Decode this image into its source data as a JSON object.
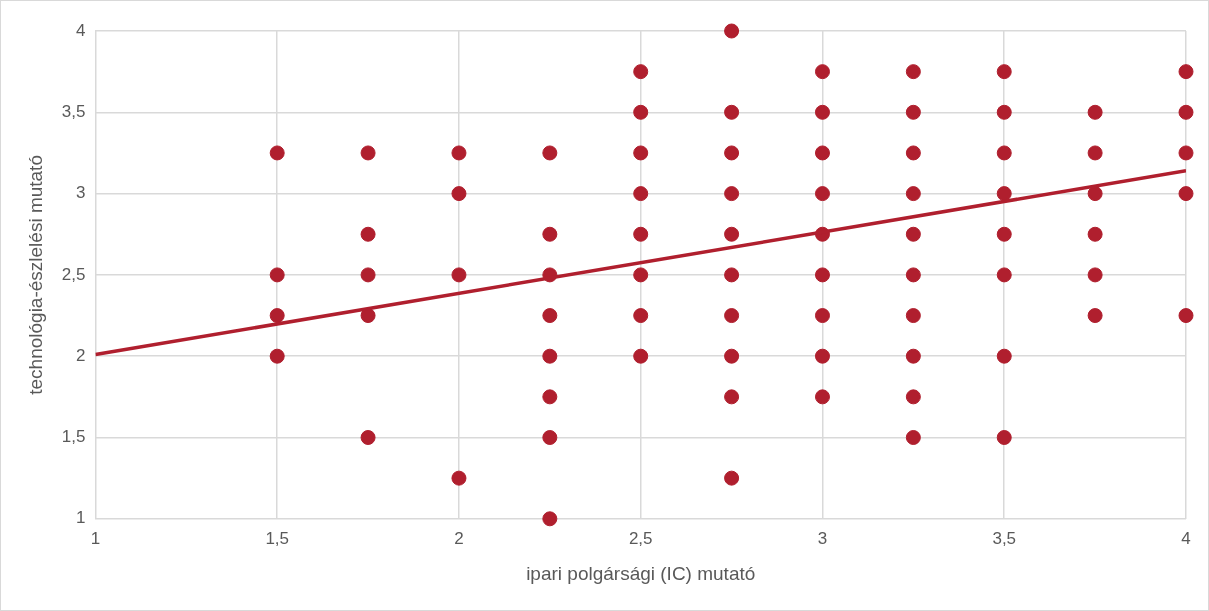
{
  "chart_data": {
    "type": "scatter",
    "xlabel": "ipari polgársági (IC) mutató",
    "ylabel": "technológia-észlelési mutató",
    "grid": true,
    "legend": false,
    "xlim": [
      1,
      4
    ],
    "xticks": [
      1,
      {
        "value": 1.5,
        "label": "1,5"
      },
      2,
      {
        "value": 2.5,
        "label": "2,5"
      },
      3,
      {
        "value": 3.5,
        "label": "3,5"
      },
      4
    ],
    "ylim": [
      1,
      4
    ],
    "yticks": [
      1,
      {
        "value": 1.5,
        "label": "1,5"
      },
      2,
      {
        "value": 2.5,
        "label": "2,5"
      },
      3,
      {
        "value": 3.5,
        "label": "3,5"
      },
      4
    ],
    "series": [
      {
        "marker": "circle",
        "color": "#b01f2e",
        "x": [
          1.5,
          1.5,
          1.5,
          1.5,
          1.75,
          1.75,
          1.75,
          1.75,
          1.75,
          2,
          2,
          2,
          2,
          2.25,
          2.25,
          2.25,
          2.25,
          2.25,
          2.25,
          2.25,
          2.25,
          2.5,
          2.5,
          2.5,
          2.5,
          2.5,
          2.5,
          2.5,
          2.5,
          2.75,
          2.75,
          2.75,
          2.75,
          2.75,
          2.75,
          2.75,
          2.75,
          2.75,
          2.75,
          3,
          3,
          3,
          3,
          3,
          3,
          3,
          3,
          3,
          3.25,
          3.25,
          3.25,
          3.25,
          3.25,
          3.25,
          3.25,
          3.25,
          3.25,
          3.25,
          3.5,
          3.5,
          3.5,
          3.5,
          3.5,
          3.5,
          3.5,
          3.5,
          3.75,
          3.75,
          3.75,
          3.75,
          3.75,
          3.75,
          4,
          4,
          4,
          4,
          4
        ],
        "values": [
          3.25,
          2.5,
          2.25,
          2,
          3.25,
          2.75,
          2.5,
          2.25,
          1.5,
          3.25,
          3,
          2.5,
          1.25,
          3.25,
          2.75,
          2.5,
          2.25,
          2,
          1.75,
          1.5,
          1,
          3.75,
          3.5,
          3.25,
          3,
          2.75,
          2.5,
          2.25,
          2,
          4,
          3.5,
          3.25,
          3,
          2.75,
          2.5,
          2.25,
          2,
          1.75,
          1.25,
          3.75,
          3.5,
          3.25,
          3,
          2.75,
          2.5,
          2.25,
          2,
          1.75,
          3.75,
          3.5,
          3.25,
          3,
          2.75,
          2.5,
          2.25,
          2,
          1.75,
          1.5,
          3.75,
          3.5,
          3.25,
          3,
          2.75,
          2.5,
          2,
          1.5,
          3.5,
          3.25,
          3,
          2.75,
          2.5,
          2.25,
          3.75,
          3.5,
          3.25,
          3,
          2.25
        ]
      },
      {
        "type": "line",
        "marker": "none",
        "color": "#b01f2e",
        "x": [
          1,
          4
        ],
        "values": [
          2.01,
          3.14
        ]
      }
    ]
  }
}
